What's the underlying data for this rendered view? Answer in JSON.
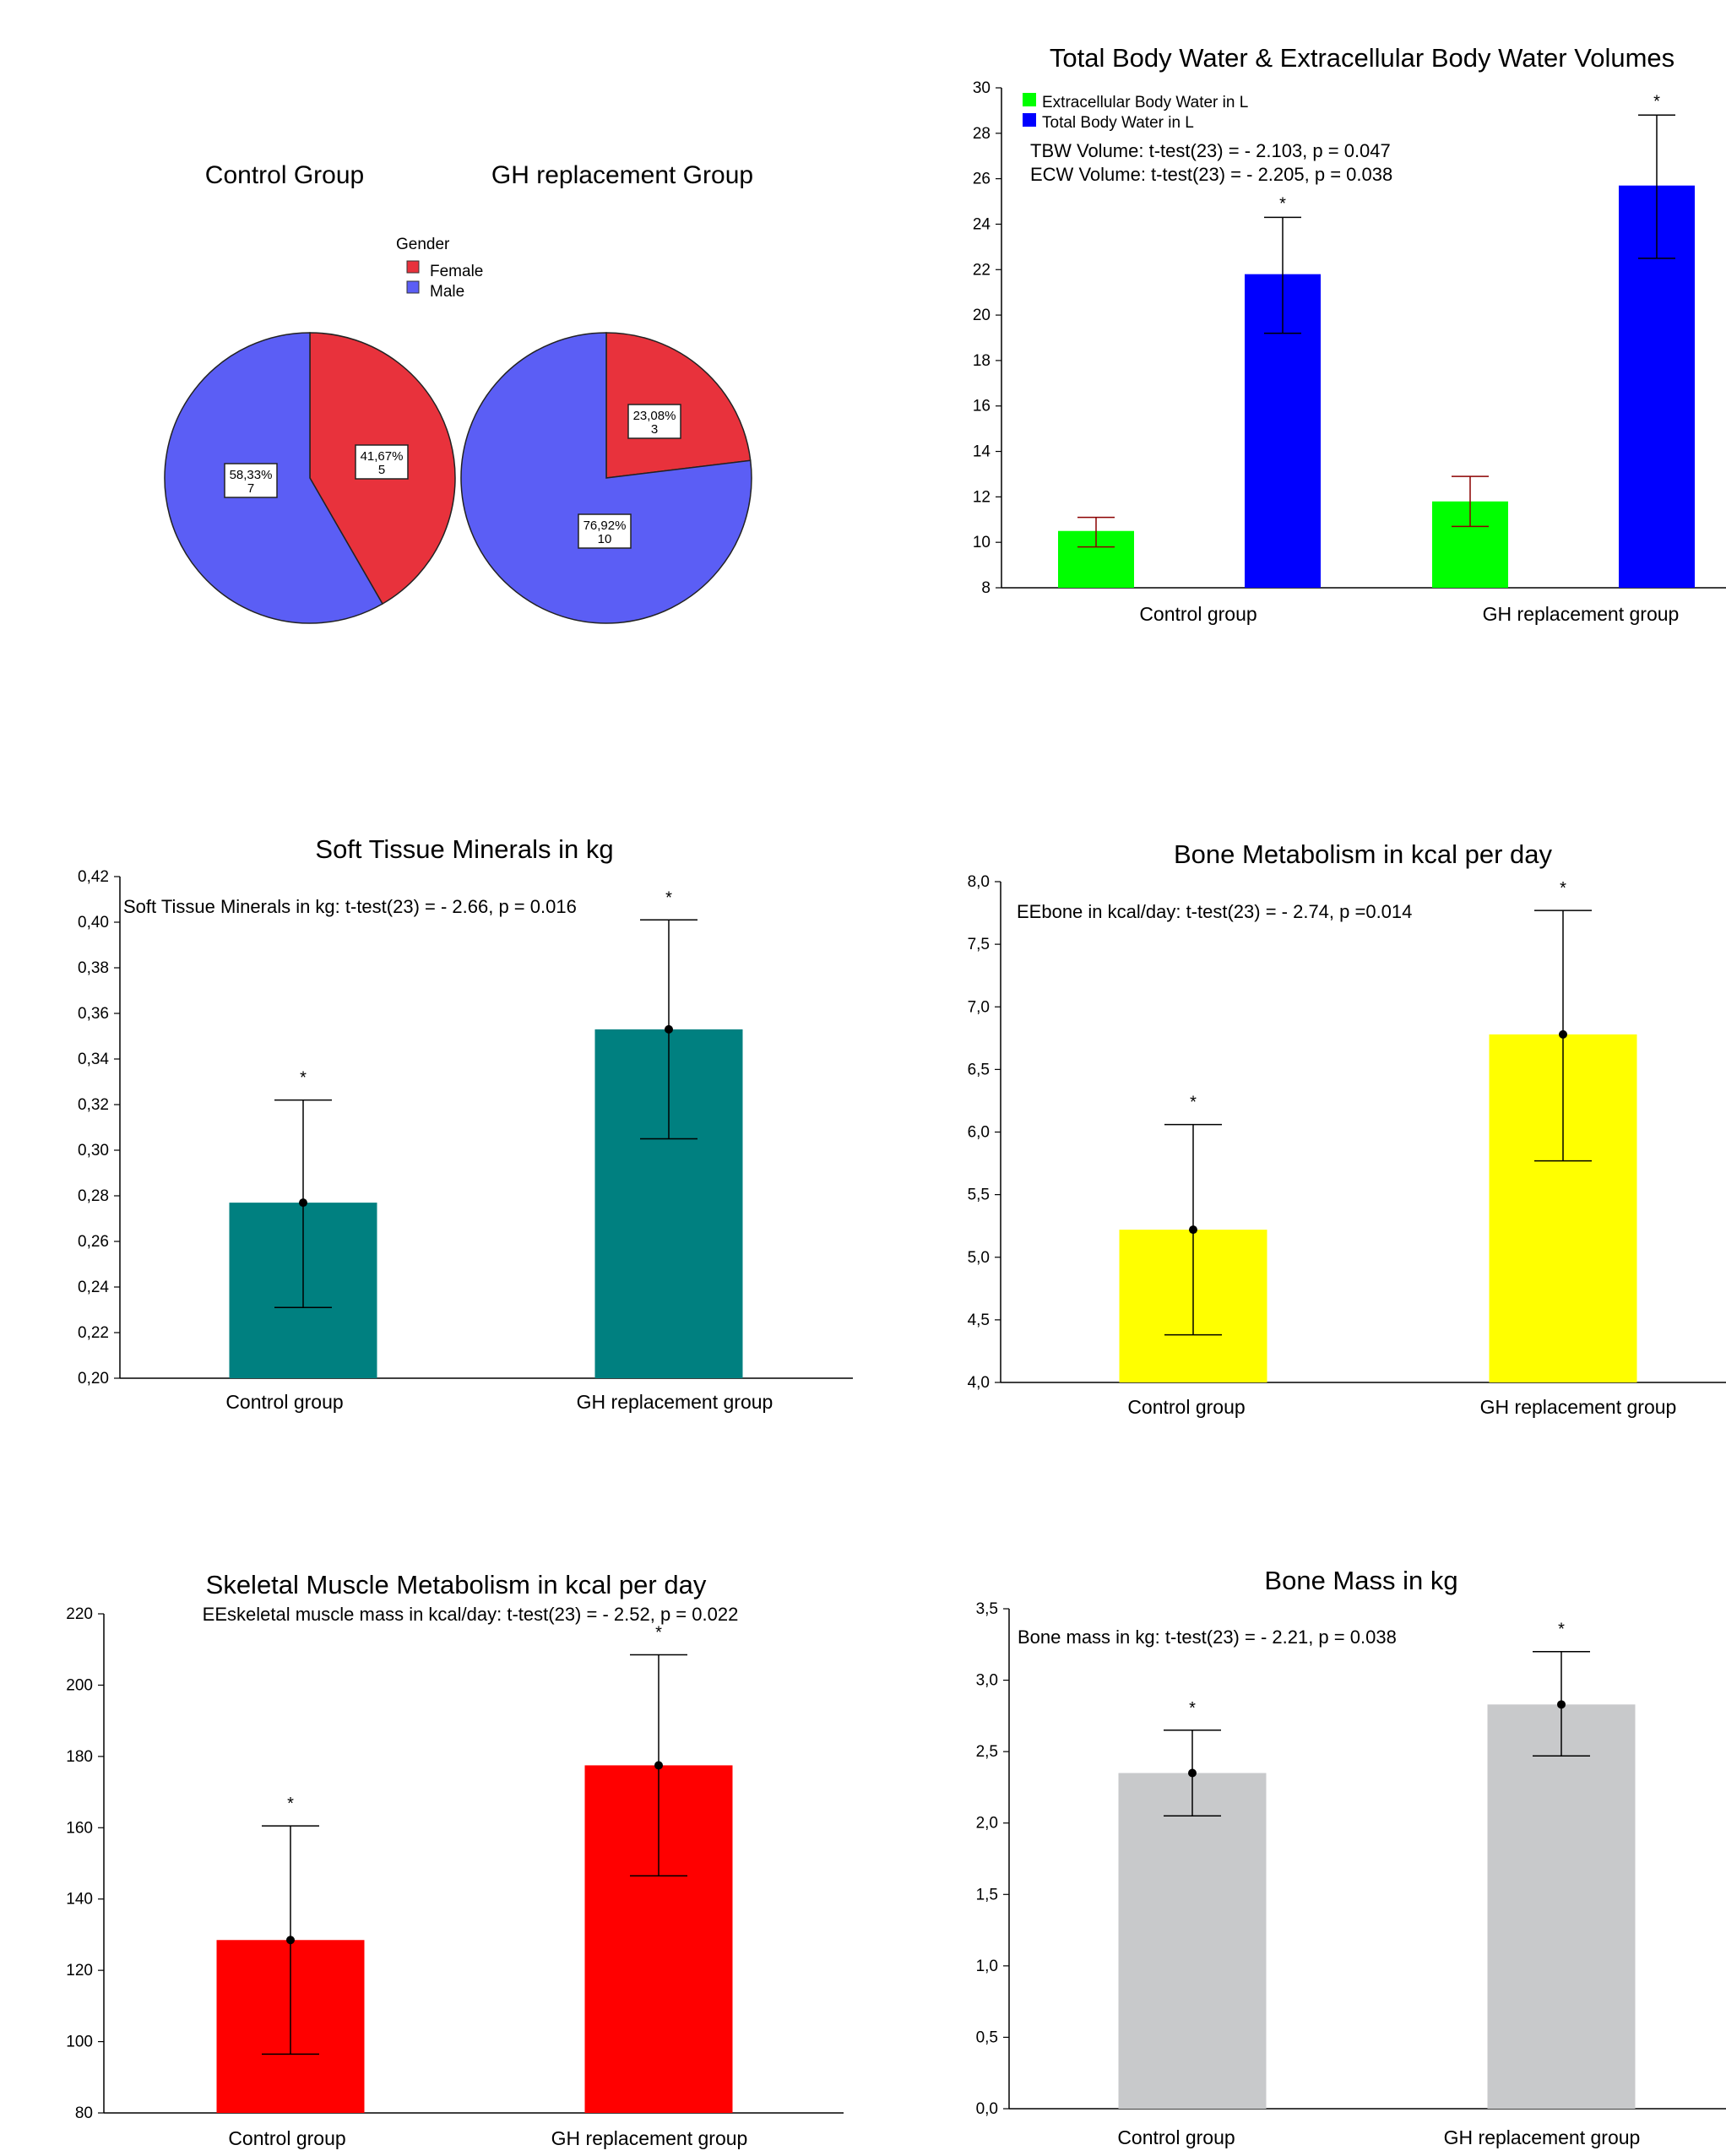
{
  "chart_data": [
    {
      "type": "pie",
      "titles": [
        "Control Group",
        "GH replacement Group"
      ],
      "legend": {
        "title": "Gender",
        "labels": [
          "Female",
          "Male"
        ],
        "colors": [
          "#e8323c",
          "#5b5ef5"
        ]
      },
      "pies": [
        {
          "name": "Control Group",
          "slices": [
            {
              "label": "Female",
              "percent": "41,67%",
              "count": "5",
              "value": 41.67
            },
            {
              "label": "Male",
              "percent": "58,33%",
              "count": "7",
              "value": 58.33
            }
          ]
        },
        {
          "name": "GH replacement Group",
          "slices": [
            {
              "label": "Female",
              "percent": "23,08%",
              "count": "3",
              "value": 23.08
            },
            {
              "label": "Male",
              "percent": "76,92%",
              "count": "10",
              "value": 76.92
            }
          ]
        }
      ]
    },
    {
      "type": "bar",
      "title": "Total Body Water & Extracellular Body Water Volumes",
      "categories": [
        "Control group",
        "GH replacement group"
      ],
      "series": [
        {
          "name": "Extracellular Body Water in L",
          "color": "#00ff00",
          "values": [
            10.5,
            11.8
          ],
          "err_low": [
            9.8,
            10.7
          ],
          "err_high": [
            11.1,
            12.9
          ]
        },
        {
          "name": "Total Body Water in L",
          "color": "#0000ff",
          "values": [
            21.8,
            25.7
          ],
          "err_low": [
            19.2,
            22.5
          ],
          "err_high": [
            24.3,
            28.8
          ]
        }
      ],
      "ylim": [
        8,
        30
      ],
      "yticks": [
        "8",
        "10",
        "12",
        "14",
        "16",
        "18",
        "20",
        "22",
        "24",
        "26",
        "28",
        "30"
      ],
      "annotations": [
        "TBW Volume: t-test(23) = - 2.103, p = 0.047",
        "ECW Volume: t-test(23) = - 2.205, p = 0.038"
      ]
    },
    {
      "type": "bar",
      "title": "Soft Tissue Minerals in kg",
      "categories": [
        "Control group",
        "GH replacement group"
      ],
      "values": [
        0.277,
        0.353
      ],
      "err_low": [
        0.231,
        0.305
      ],
      "err_high": [
        0.322,
        0.401
      ],
      "color": "#008080",
      "ylim": [
        0.2,
        0.42
      ],
      "yticks": [
        "0,20",
        "0,22",
        "0,24",
        "0,26",
        "0,28",
        "0,30",
        "0,32",
        "0,34",
        "0,36",
        "0,38",
        "0,40",
        "0,42"
      ],
      "annotation": "Soft Tissue Minerals in kg: t-test(23) = - 2.66, p = 0.016"
    },
    {
      "type": "bar",
      "title": "Bone Metabolism in kcal per day",
      "categories": [
        "Control group",
        "GH replacement group"
      ],
      "values": [
        5.22,
        6.78
      ],
      "err_low": [
        4.38,
        5.77
      ],
      "err_high": [
        6.06,
        7.77
      ],
      "color": "#ffff00",
      "ylim": [
        4.0,
        8.0
      ],
      "yticks": [
        "4,0",
        "4,5",
        "5,0",
        "5,5",
        "6,0",
        "6,5",
        "7,0",
        "7,5",
        "8,0"
      ],
      "annotation": "EEbone in kcal/day: t-test(23) = - 2.74, p =0.014"
    },
    {
      "type": "bar",
      "title": "Skeletal Muscle Metabolism in kcal per day",
      "categories": [
        "Control group",
        "GH replacement group"
      ],
      "values": [
        128.5,
        177.5
      ],
      "err_low": [
        96.5,
        146.5
      ],
      "err_high": [
        160.5,
        208.5
      ],
      "color": "#ff0000",
      "ylim": [
        80,
        220
      ],
      "yticks": [
        "80",
        "100",
        "120",
        "140",
        "160",
        "180",
        "200",
        "220"
      ],
      "annotation": "EEskeletal muscle mass in kcal/day: t-test(23) = - 2.52, p = 0.022"
    },
    {
      "type": "bar",
      "title": "Bone Mass in kg",
      "categories": [
        "Control group",
        "GH replacement group"
      ],
      "values": [
        2.35,
        2.83
      ],
      "err_low": [
        2.05,
        2.47
      ],
      "err_high": [
        2.65,
        3.2
      ],
      "color": "#c8c9cb",
      "ylim": [
        0.0,
        3.5
      ],
      "yticks": [
        "0,0",
        "0,5",
        "1,0",
        "1,5",
        "2,0",
        "2,5",
        "3,0",
        "3,5"
      ],
      "annotation": "Bone mass in kg: t-test(23) = - 2.21, p = 0.038"
    }
  ]
}
